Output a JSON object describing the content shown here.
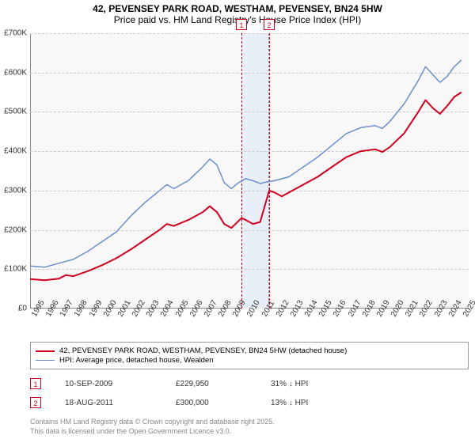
{
  "title": {
    "line1": "42, PEVENSEY PARK ROAD, WESTHAM, PEVENSEY, BN24 5HW",
    "line2": "Price paid vs. HM Land Registry's House Price Index (HPI)"
  },
  "chart": {
    "type": "line",
    "background_color": "#f8f8f8",
    "grid_color": "#cccccc",
    "axis_color": "#888888",
    "ylim": [
      0,
      700000
    ],
    "ytick_step": 100000,
    "yticks": [
      "£0",
      "£100K",
      "£200K",
      "£300K",
      "£400K",
      "£500K",
      "£600K",
      "£700K"
    ],
    "xlim": [
      1995,
      2025.5
    ],
    "xticks": [
      "1995",
      "1996",
      "1997",
      "1998",
      "1999",
      "2000",
      "2001",
      "2002",
      "2003",
      "2004",
      "2005",
      "2006",
      "2007",
      "2008",
      "2009",
      "2010",
      "2011",
      "2012",
      "2013",
      "2014",
      "2015",
      "2016",
      "2017",
      "2018",
      "2019",
      "2020",
      "2021",
      "2022",
      "2023",
      "2024",
      "2025"
    ],
    "tick_fontsize": 10,
    "highlight": {
      "start": 2009.7,
      "end": 2011.63,
      "color": "#e8eff8"
    },
    "markers": [
      {
        "label": "1",
        "x": 2009.7
      },
      {
        "label": "2",
        "x": 2011.63
      }
    ],
    "series": [
      {
        "name": "price_paid",
        "color": "#d00020",
        "width": 2,
        "label": "42, PEVENSEY PARK ROAD, WESTHAM, PEVENSEY, BN24 5HW (detached house)",
        "points": [
          [
            1995,
            75000
          ],
          [
            1996,
            72000
          ],
          [
            1997,
            76000
          ],
          [
            1997.5,
            85000
          ],
          [
            1998,
            82000
          ],
          [
            1999,
            95000
          ],
          [
            2000,
            110000
          ],
          [
            2001,
            128000
          ],
          [
            2002,
            150000
          ],
          [
            2003,
            175000
          ],
          [
            2004,
            200000
          ],
          [
            2004.5,
            215000
          ],
          [
            2005,
            210000
          ],
          [
            2006,
            225000
          ],
          [
            2007,
            245000
          ],
          [
            2007.5,
            260000
          ],
          [
            2008,
            245000
          ],
          [
            2008.5,
            215000
          ],
          [
            2009,
            205000
          ],
          [
            2009.7,
            229950
          ],
          [
            2010,
            225000
          ],
          [
            2010.5,
            215000
          ],
          [
            2011,
            220000
          ],
          [
            2011.63,
            300000
          ],
          [
            2012,
            295000
          ],
          [
            2012.5,
            285000
          ],
          [
            2013,
            295000
          ],
          [
            2014,
            315000
          ],
          [
            2015,
            335000
          ],
          [
            2016,
            360000
          ],
          [
            2017,
            385000
          ],
          [
            2018,
            400000
          ],
          [
            2019,
            405000
          ],
          [
            2019.5,
            398000
          ],
          [
            2020,
            410000
          ],
          [
            2021,
            445000
          ],
          [
            2022,
            500000
          ],
          [
            2022.5,
            530000
          ],
          [
            2023,
            510000
          ],
          [
            2023.5,
            495000
          ],
          [
            2024,
            515000
          ],
          [
            2024.5,
            538000
          ],
          [
            2025,
            550000
          ]
        ]
      },
      {
        "name": "hpi",
        "color": "#6b8fc9",
        "width": 1.5,
        "label": "HPI: Average price, detached house, Wealden",
        "points": [
          [
            1995,
            108000
          ],
          [
            1996,
            105000
          ],
          [
            1997,
            115000
          ],
          [
            1998,
            125000
          ],
          [
            1999,
            145000
          ],
          [
            2000,
            170000
          ],
          [
            2001,
            195000
          ],
          [
            2002,
            235000
          ],
          [
            2003,
            270000
          ],
          [
            2004,
            300000
          ],
          [
            2004.5,
            315000
          ],
          [
            2005,
            305000
          ],
          [
            2006,
            325000
          ],
          [
            2007,
            360000
          ],
          [
            2007.5,
            380000
          ],
          [
            2008,
            365000
          ],
          [
            2008.5,
            320000
          ],
          [
            2009,
            305000
          ],
          [
            2009.5,
            320000
          ],
          [
            2010,
            330000
          ],
          [
            2010.5,
            325000
          ],
          [
            2011,
            318000
          ],
          [
            2011.5,
            322000
          ],
          [
            2012,
            325000
          ],
          [
            2013,
            335000
          ],
          [
            2014,
            360000
          ],
          [
            2015,
            385000
          ],
          [
            2016,
            415000
          ],
          [
            2017,
            445000
          ],
          [
            2018,
            460000
          ],
          [
            2019,
            465000
          ],
          [
            2019.5,
            458000
          ],
          [
            2020,
            475000
          ],
          [
            2021,
            520000
          ],
          [
            2022,
            580000
          ],
          [
            2022.5,
            615000
          ],
          [
            2023,
            595000
          ],
          [
            2023.5,
            575000
          ],
          [
            2024,
            590000
          ],
          [
            2024.5,
            615000
          ],
          [
            2025,
            632000
          ]
        ]
      }
    ]
  },
  "sales": [
    {
      "marker": "1",
      "date": "10-SEP-2009",
      "price": "£229,950",
      "delta": "31% ↓ HPI"
    },
    {
      "marker": "2",
      "date": "18-AUG-2011",
      "price": "£300,000",
      "delta": "13% ↓ HPI"
    }
  ],
  "footnote": {
    "line1": "Contains HM Land Registry data © Crown copyright and database right 2025.",
    "line2": "This data is licensed under the Open Government Licence v3.0."
  },
  "layout": {
    "sale_row_tops": [
      478,
      502
    ],
    "footnote_top": 528
  }
}
